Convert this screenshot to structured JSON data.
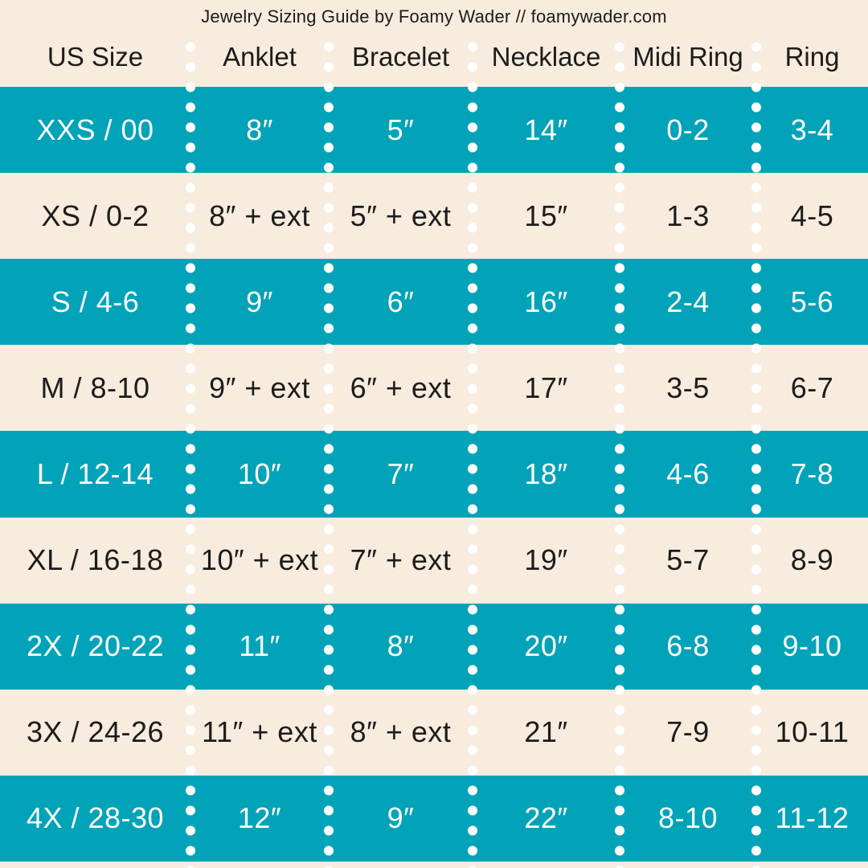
{
  "title": "Jewelry Sizing Guide by Foamy Wader // foamywader.com",
  "chart_data": {
    "type": "table",
    "title": "Jewelry Sizing Guide by Foamy Wader // foamywader.com",
    "columns": [
      "US Size",
      "Anklet",
      "Bracelet",
      "Necklace",
      "Midi Ring",
      "Ring"
    ],
    "rows": [
      {
        "style": "teal",
        "cells": [
          "XXS / 00",
          "8″",
          "5″",
          "14″",
          "0-2",
          "3-4"
        ]
      },
      {
        "style": "cream",
        "cells": [
          "XS / 0-2",
          "8″ + ext",
          "5″ + ext",
          "15″",
          "1-3",
          "4-5"
        ]
      },
      {
        "style": "teal",
        "cells": [
          "S / 4-6",
          "9″",
          "6″",
          "16″",
          "2-4",
          "5-6"
        ]
      },
      {
        "style": "cream",
        "cells": [
          "M / 8-10",
          "9″ + ext",
          "6″ + ext",
          "17″",
          "3-5",
          "6-7"
        ]
      },
      {
        "style": "teal",
        "cells": [
          "L / 12-14",
          "10″",
          "7″",
          "18″",
          "4-6",
          "7-8"
        ]
      },
      {
        "style": "cream",
        "cells": [
          "XL / 16-18",
          "10″ + ext",
          "7″ + ext",
          "19″",
          "5-7",
          "8-9"
        ]
      },
      {
        "style": "teal",
        "cells": [
          "2X / 20-22",
          "11″",
          "8″",
          "20″",
          "6-8",
          "9-10"
        ]
      },
      {
        "style": "cream",
        "cells": [
          "3X / 24-26",
          "11″ + ext",
          "8″ + ext",
          "21″",
          "7-9",
          "10-11"
        ]
      },
      {
        "style": "teal",
        "cells": [
          "4X / 28-30",
          "12″",
          "9″",
          "22″",
          "8-10",
          "11-12"
        ]
      }
    ],
    "layout": {
      "row_striping": [
        "teal",
        "cream"
      ],
      "column_dividers": "white dotted vertical lines"
    }
  },
  "colors": {
    "teal_row_bg": "#00a3b8",
    "cream_bg": "#f7ecdd",
    "text_dark": "#1c1c1c",
    "text_on_teal": "#ffffff",
    "divider_dots": "#ffffff"
  }
}
